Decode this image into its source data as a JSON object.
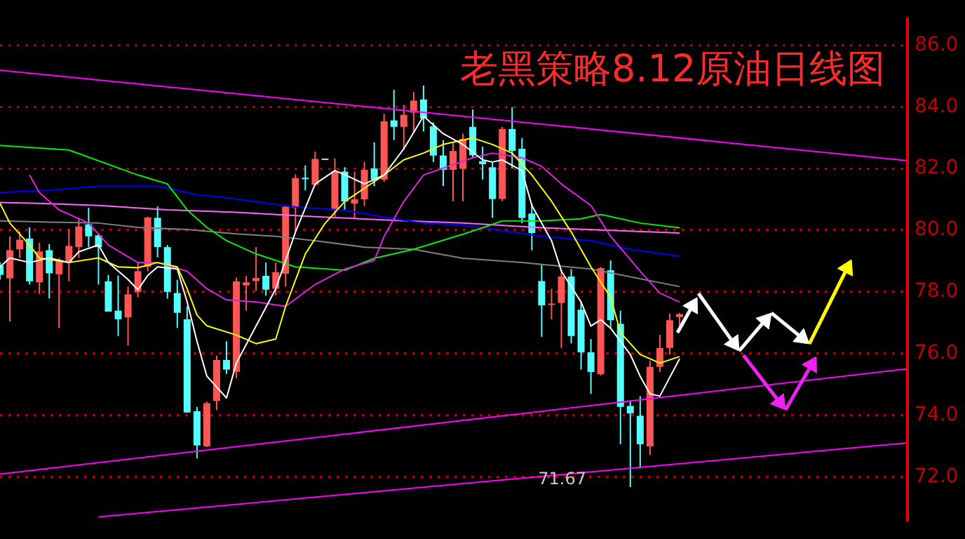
{
  "chart_data": {
    "type": "candlestick",
    "title": "老黑策略8.12原油日线图",
    "categories": [
      null,
      null,
      null,
      null,
      null,
      null,
      null,
      null,
      null,
      null,
      null,
      null,
      null,
      null,
      null,
      null,
      null,
      null,
      null,
      null,
      null,
      null,
      null,
      null,
      null,
      null,
      null,
      null,
      null,
      null,
      null,
      null,
      null,
      null,
      null,
      null,
      null,
      null,
      null,
      null,
      null,
      null,
      null,
      null,
      null,
      null,
      null,
      null,
      null,
      null,
      null,
      null,
      null,
      null,
      null,
      null,
      null,
      null,
      null,
      null,
      null,
      null,
      null,
      null,
      null,
      null,
      null,
      null,
      null,
      null,
      null,
      null,
      null,
      null,
      null,
      null,
      null,
      null,
      null,
      null,
      null,
      null,
      null,
      null,
      null,
      null,
      null,
      null,
      null,
      null,
      null,
      null,
      null
    ],
    "ohlc": [
      [
        78.85,
        78.95,
        78.4,
        78.55
      ],
      [
        78.44,
        79.8,
        77.04,
        79.35
      ],
      [
        79.38,
        79.95,
        79.1,
        79.69
      ],
      [
        79.73,
        80.09,
        78.24,
        78.34
      ],
      [
        78.31,
        79.59,
        77.93,
        79.31
      ],
      [
        79.35,
        79.55,
        77.79,
        78.6
      ],
      [
        78.57,
        79.1,
        76.83,
        79.0
      ],
      [
        78.95,
        80.02,
        78.34,
        79.49
      ],
      [
        79.45,
        80.37,
        79.1,
        80.12
      ],
      [
        80.19,
        80.73,
        79.45,
        79.8
      ],
      [
        79.83,
        79.88,
        78.24,
        79.45
      ],
      [
        78.34,
        78.55,
        77.36,
        77.36
      ],
      [
        77.39,
        78.53,
        76.57,
        77.11
      ],
      [
        77.17,
        78.17,
        76.26,
        77.92
      ],
      [
        77.99,
        78.95,
        77.82,
        78.67
      ],
      [
        78.81,
        80.44,
        78.67,
        80.41
      ],
      [
        80.4,
        80.77,
        79.12,
        79.45
      ],
      [
        79.45,
        79.52,
        77.78,
        78.0
      ],
      [
        77.96,
        78.39,
        76.83,
        77.32
      ],
      [
        77.11,
        77.53,
        74.09,
        74.09
      ],
      [
        74.13,
        74.27,
        72.6,
        73.02
      ],
      [
        72.99,
        74.44,
        72.97,
        74.39
      ],
      [
        74.46,
        75.93,
        74.17,
        75.79
      ],
      [
        75.79,
        76.4,
        75.34,
        75.48
      ],
      [
        75.41,
        78.46,
        75.2,
        78.34
      ],
      [
        78.21,
        78.52,
        77.39,
        78.31
      ],
      [
        78.35,
        79.45,
        78.03,
        78.45
      ],
      [
        78.52,
        78.95,
        77.88,
        78.07
      ],
      [
        78.1,
        78.95,
        77.88,
        78.64
      ],
      [
        78.59,
        80.82,
        78.17,
        80.76
      ],
      [
        80.72,
        81.81,
        79.94,
        81.69
      ],
      [
        81.7,
        82.1,
        81.29,
        81.68
      ],
      [
        81.47,
        82.55,
        81.43,
        82.31
      ],
      [
        82.32,
        82.33,
        82.32,
        82.32
      ],
      [
        80.68,
        82.33,
        80.44,
        81.9
      ],
      [
        81.9,
        82.04,
        80.65,
        80.93
      ],
      [
        80.86,
        81.9,
        80.37,
        81.0
      ],
      [
        81.0,
        82.21,
        80.79,
        81.96
      ],
      [
        82.0,
        82.85,
        81.43,
        81.64
      ],
      [
        81.64,
        83.77,
        81.57,
        83.53
      ],
      [
        83.56,
        84.55,
        82.92,
        83.35
      ],
      [
        83.35,
        84.06,
        82.61,
        83.74
      ],
      [
        83.81,
        84.48,
        83.2,
        84.2
      ],
      [
        84.24,
        84.69,
        83.2,
        83.63
      ],
      [
        83.37,
        83.49,
        82.21,
        82.42
      ],
      [
        82.42,
        82.92,
        81.43,
        81.96
      ],
      [
        81.96,
        82.85,
        80.94,
        82.57
      ],
      [
        81.99,
        83.13,
        80.94,
        82.96
      ],
      [
        83.35,
        83.91,
        82.35,
        82.43
      ],
      [
        82.24,
        82.71,
        81.64,
        82.14
      ],
      [
        82.04,
        82.21,
        80.4,
        81.01
      ],
      [
        81.01,
        83.35,
        80.94,
        83.28
      ],
      [
        83.28,
        83.99,
        82.0,
        82.57
      ],
      [
        82.64,
        82.99,
        80.23,
        80.4
      ],
      [
        80.54,
        80.86,
        79.35,
        79.91
      ],
      [
        78.35,
        78.88,
        76.54,
        77.56
      ],
      [
        77.6,
        78.1,
        77.11,
        77.62
      ],
      [
        77.64,
        78.74,
        76.18,
        78.5
      ],
      [
        78.5,
        78.74,
        76.33,
        76.57
      ],
      [
        77.42,
        77.67,
        75.48,
        76.04
      ],
      [
        76.04,
        76.47,
        74.69,
        75.4
      ],
      [
        75.33,
        78.81,
        75.29,
        78.77
      ],
      [
        78.7,
        79.02,
        76.82,
        77.08
      ],
      [
        76.96,
        77.39,
        73.06,
        74.27
      ],
      [
        74.3,
        74.48,
        71.67,
        74.06
      ],
      [
        73.98,
        74.62,
        72.28,
        73.06
      ],
      [
        72.99,
        75.76,
        72.71,
        75.57
      ],
      [
        75.57,
        76.61,
        75.4,
        76.18
      ],
      [
        76.18,
        77.29,
        75.97,
        77.08
      ],
      [
        77.18,
        77.32,
        76.85,
        77.28
      ],
      null,
      null,
      null,
      null,
      null,
      null,
      null,
      null,
      null,
      null,
      null,
      null,
      null,
      null,
      null,
      null,
      null,
      null,
      null,
      null,
      null,
      null,
      null
    ],
    "colors": [
      "#55ffff",
      "#ff5555",
      "#ff5555",
      "#55ffff",
      "#ff5555",
      "#55ffff",
      "#ff5555",
      "#ff5555",
      "#ff5555",
      "#55ffff",
      "#55ffff",
      "#55ffff",
      "#55ffff",
      "#ff5555",
      "#ff5555",
      "#ff5555",
      "#55ffff",
      "#55ffff",
      "#55ffff",
      "#55ffff",
      "#55ffff",
      "#ff5555",
      "#ff5555",
      "#55ffff",
      "#ff5555",
      "#ff5555",
      "#ff5555",
      "#55ffff",
      "#ff5555",
      "#ff5555",
      "#ff5555",
      "#55ffff",
      "#ff5555",
      "#cccccc",
      "#ff5555",
      "#55ffff",
      "#ff5555",
      "#ff5555",
      "#55ffff",
      "#ff5555",
      "#55ffff",
      "#ff5555",
      "#ff5555",
      "#55ffff",
      "#55ffff",
      "#55ffff",
      "#ff5555",
      "#ff5555",
      "#55ffff",
      "#55ffff",
      "#55ffff",
      "#ff5555",
      "#55ffff",
      "#55ffff",
      "#55ffff",
      "#55ffff",
      "#ff5555",
      "#ff5555",
      "#55ffff",
      "#55ffff",
      "#55ffff",
      "#ff5555",
      "#55ffff",
      "#55ffff",
      "#55ffff",
      "#55ffff",
      "#ff5555",
      "#ff5555",
      "#ff5555",
      "#ff5555",
      null,
      null,
      null,
      null,
      null,
      null,
      null,
      null,
      null,
      null,
      null,
      null,
      null,
      null,
      null,
      null,
      null,
      null,
      null,
      null,
      null,
      null,
      null
    ],
    "series": [
      {
        "type": "line",
        "color": "#ffffff",
        "values": [
          78.81,
          79.1,
          null,
          78.95,
          null,
          79.1,
          null,
          78.95,
          79.3,
          null,
          79.52,
          78.95,
          null,
          78.4,
          78.07,
          78.53,
          78.81,
          null,
          78.74,
          77.68,
          76.4,
          75.27,
          null,
          74.56,
          75.69,
          null,
          null,
          null,
          78.1,
          null,
          79.94,
          null,
          81.5,
          null,
          81.93,
          81.8,
          null,
          81.5,
          null,
          81.79,
          null,
          82.64,
          null,
          83.7,
          null,
          83.13,
          null,
          82.78,
          null,
          82.28,
          82.21,
          82.28,
          null,
          81.93,
          80.8,
          null,
          79.66,
          78.67,
          null,
          77.67,
          76.89,
          77.1,
          76.82,
          null,
          75.97,
          75.26,
          74.69,
          74.62,
          null,
          75.83,
          null,
          null,
          null,
          null,
          null,
          null,
          null,
          null,
          null,
          null,
          null,
          null,
          null,
          null,
          null,
          null,
          null,
          null,
          null,
          null,
          null,
          null,
          null
        ]
      },
      {
        "type": "line",
        "color": "#ffff00",
        "values": [
          80.87,
          80.23,
          null,
          79.52,
          79.1,
          null,
          null,
          78.95,
          null,
          null,
          79.1,
          null,
          78.81,
          null,
          78.78,
          null,
          78.95,
          null,
          78.81,
          78.1,
          77.25,
          76.9,
          null,
          null,
          76.6,
          null,
          76.32,
          null,
          76.47,
          77.53,
          null,
          79.23,
          null,
          80.22,
          null,
          80.93,
          null,
          81.36,
          null,
          81.79,
          null,
          82.28,
          null,
          82.5,
          null,
          82.78,
          null,
          null,
          82.99,
          null,
          82.78,
          null,
          82.5,
          null,
          81.79,
          null,
          80.94,
          null,
          79.94,
          null,
          78.81,
          null,
          77.82,
          76.68,
          null,
          75.97,
          null,
          75.69,
          null,
          75.9,
          null,
          null,
          null,
          null,
          null,
          null,
          null,
          null,
          null,
          null,
          null,
          null,
          null,
          null,
          null,
          null,
          null,
          null,
          null,
          null,
          null,
          null,
          null
        ]
      },
      {
        "type": "line",
        "color": "#e020e0",
        "values": [
          null,
          null,
          null,
          81.79,
          81.22,
          null,
          80.66,
          null,
          null,
          80.23,
          null,
          79.52,
          null,
          null,
          78.95,
          null,
          78.95,
          null,
          null,
          78.67,
          null,
          78.1,
          null,
          77.74,
          null,
          null,
          77.67,
          null,
          null,
          77.53,
          null,
          null,
          78.24,
          null,
          null,
          78.74,
          null,
          null,
          79.02,
          79.8,
          null,
          80.93,
          null,
          81.79,
          null,
          null,
          null,
          null,
          82.35,
          null,
          82.5,
          null,
          null,
          82.35,
          null,
          82.07,
          null,
          81.5,
          null,
          null,
          80.8,
          null,
          79.8,
          null,
          null,
          78.67,
          null,
          77.96,
          null,
          77.67,
          null,
          null,
          null,
          null,
          null,
          null,
          null,
          null,
          null,
          null,
          null,
          null,
          null,
          null,
          null,
          null,
          null,
          null,
          null,
          null,
          null,
          null,
          null
        ]
      },
      {
        "type": "line",
        "color": "#00ee00",
        "values": [
          82.75,
          null,
          null,
          null,
          null,
          null,
          null,
          82.6,
          null,
          null,
          null,
          null,
          null,
          null,
          81.79,
          null,
          null,
          81.5,
          null,
          80.66,
          null,
          80.09,
          null,
          79.66,
          null,
          null,
          79.23,
          null,
          null,
          null,
          78.81,
          null,
          null,
          null,
          null,
          78.7,
          null,
          null,
          79.09,
          null,
          null,
          null,
          79.38,
          null,
          null,
          null,
          null,
          79.87,
          null,
          80.08,
          null,
          80.3,
          null,
          null,
          null,
          80.3,
          null,
          null,
          null,
          80.37,
          null,
          80.51,
          null,
          null,
          null,
          80.23,
          null,
          null,
          null,
          80.08,
          null,
          null,
          null,
          null,
          null,
          null,
          null,
          null,
          null,
          null,
          null,
          null,
          null,
          null,
          null,
          null,
          null,
          null,
          null,
          null,
          null,
          null,
          null
        ]
      },
      {
        "type": "line",
        "color": "#0000ff",
        "values": [
          81.22,
          null,
          null,
          null,
          null,
          81.29,
          null,
          null,
          null,
          null,
          81.43,
          null,
          null,
          null,
          null,
          null,
          81.43,
          null,
          null,
          null,
          81.15,
          null,
          null,
          81.05,
          null,
          null,
          null,
          null,
          null,
          null,
          80.75,
          null,
          null,
          null,
          null,
          80.65,
          null,
          null,
          null,
          null,
          80.37,
          null,
          null,
          80.23,
          null,
          null,
          null,
          80.16,
          null,
          80.08,
          null,
          null,
          null,
          null,
          null,
          79.8,
          null,
          null,
          null,
          null,
          79.66,
          null,
          null,
          null,
          79.38,
          null,
          null,
          null,
          null,
          79.16,
          null,
          null,
          null,
          null,
          null,
          null,
          null,
          null,
          null,
          null,
          null,
          null,
          null,
          null,
          null,
          null,
          null,
          null,
          null,
          null,
          null,
          null,
          null
        ]
      },
      {
        "type": "line",
        "color": "#ff66ff",
        "values": [
          80.9,
          null,
          null,
          null,
          80.87,
          null,
          null,
          null,
          null,
          null,
          80.8,
          null,
          null,
          null,
          null,
          null,
          null,
          80.66,
          null,
          null,
          null,
          null,
          null,
          null,
          80.58,
          null,
          null,
          null,
          null,
          null,
          null,
          null,
          80.44,
          null,
          null,
          null,
          null,
          null,
          null,
          null,
          80.32,
          null,
          null,
          null,
          null,
          null,
          null,
          80.23,
          null,
          null,
          null,
          null,
          null,
          null,
          null,
          80.08,
          null,
          null,
          null,
          null,
          null,
          null,
          null,
          null,
          null,
          null,
          null,
          null,
          null,
          79.91,
          null,
          null,
          null,
          null,
          null,
          null,
          null,
          null,
          null,
          null,
          null,
          null,
          null,
          null,
          null,
          null,
          null,
          null,
          null,
          null,
          null,
          null,
          null
        ]
      },
      {
        "type": "line",
        "color": "#808080",
        "values": [
          80.3,
          null,
          null,
          null,
          null,
          80.26,
          null,
          null,
          null,
          null,
          80.23,
          null,
          null,
          null,
          80.09,
          null,
          null,
          null,
          null,
          80.02,
          null,
          null,
          null,
          null,
          79.88,
          null,
          null,
          null,
          79.8,
          null,
          null,
          null,
          79.66,
          null,
          null,
          null,
          null,
          79.45,
          null,
          null,
          null,
          null,
          79.38,
          null,
          null,
          null,
          null,
          79.09,
          null,
          null,
          null,
          null,
          null,
          78.95,
          null,
          null,
          null,
          null,
          null,
          null,
          78.74,
          null,
          null,
          null,
          null,
          null,
          null,
          null,
          null,
          78.17,
          null,
          null,
          null,
          null,
          null,
          null,
          null,
          null,
          null,
          null,
          null,
          null,
          null,
          null,
          null,
          null,
          null,
          null,
          null,
          null,
          null,
          null,
          null
        ]
      },
      {
        "type": "line",
        "color": "#ff00ff",
        "values": [
          85.19,
          null,
          null,
          null,
          null,
          null,
          null,
          null,
          null,
          null,
          null,
          null,
          null,
          null,
          null,
          null,
          null,
          null,
          null,
          null,
          null,
          null,
          null,
          null,
          null,
          null,
          null,
          null,
          null,
          null,
          null,
          null,
          null,
          null,
          null,
          null,
          null,
          null,
          null,
          null,
          null,
          null,
          null,
          null,
          null,
          null,
          null,
          null,
          null,
          null,
          null,
          null,
          null,
          null,
          null,
          null,
          null,
          null,
          null,
          null,
          null,
          null,
          null,
          null,
          null,
          null,
          null,
          null,
          null,
          null,
          null,
          null,
          null,
          null,
          null,
          null,
          null,
          null,
          null,
          null,
          null,
          null,
          null,
          null,
          null,
          null,
          null,
          null,
          null,
          null,
          null,
          null,
          82.26
        ]
      },
      {
        "type": "line",
        "color": "#ff00ff",
        "values": [
          72.09,
          null,
          null,
          null,
          null,
          null,
          null,
          null,
          null,
          null,
          null,
          null,
          null,
          null,
          null,
          null,
          null,
          null,
          null,
          null,
          null,
          null,
          null,
          null,
          null,
          null,
          null,
          null,
          null,
          null,
          null,
          null,
          null,
          null,
          null,
          null,
          null,
          null,
          null,
          null,
          null,
          null,
          null,
          null,
          null,
          null,
          null,
          null,
          null,
          null,
          null,
          null,
          null,
          null,
          null,
          null,
          null,
          null,
          null,
          null,
          null,
          null,
          null,
          null,
          null,
          null,
          null,
          null,
          null,
          null,
          null,
          null,
          null,
          null,
          null,
          null,
          null,
          null,
          null,
          null,
          null,
          null,
          null,
          null,
          null,
          null,
          null,
          null,
          null,
          null,
          null,
          null,
          75.5
        ]
      },
      {
        "type": "line",
        "color": "#ff00ff",
        "values": [
          null,
          null,
          null,
          null,
          null,
          null,
          null,
          null,
          null,
          null,
          70.7,
          null,
          null,
          null,
          null,
          null,
          null,
          null,
          null,
          null,
          null,
          null,
          null,
          null,
          null,
          null,
          null,
          null,
          null,
          null,
          null,
          null,
          null,
          null,
          null,
          null,
          null,
          null,
          null,
          null,
          null,
          null,
          null,
          null,
          null,
          null,
          null,
          null,
          null,
          null,
          null,
          null,
          null,
          null,
          null,
          null,
          null,
          null,
          null,
          null,
          null,
          null,
          null,
          null,
          null,
          null,
          null,
          null,
          null,
          null,
          null,
          null,
          null,
          null,
          null,
          null,
          null,
          null,
          null,
          null,
          null,
          null,
          null,
          null,
          null,
          null,
          null,
          null,
          null,
          null,
          null,
          null,
          73.1
        ]
      }
    ],
    "ylim": [
      70.55,
      86.9
    ],
    "yticks": [
      {
        "value": 72,
        "label": "72.0"
      },
      {
        "value": 74,
        "label": "74.0"
      },
      {
        "value": 76,
        "label": "76.0"
      },
      {
        "value": 78,
        "label": "78.0"
      },
      {
        "value": 80,
        "label": "80.0"
      },
      {
        "value": 82,
        "label": "82.0"
      },
      {
        "value": 84,
        "label": "84.0"
      },
      {
        "value": 86,
        "label": "86.0"
      }
    ],
    "annotations": [
      "71.67"
    ],
    "grid": "y",
    "legend": false,
    "tick_labels": "y",
    "marker": "none",
    "line_style": "solid"
  }
}
